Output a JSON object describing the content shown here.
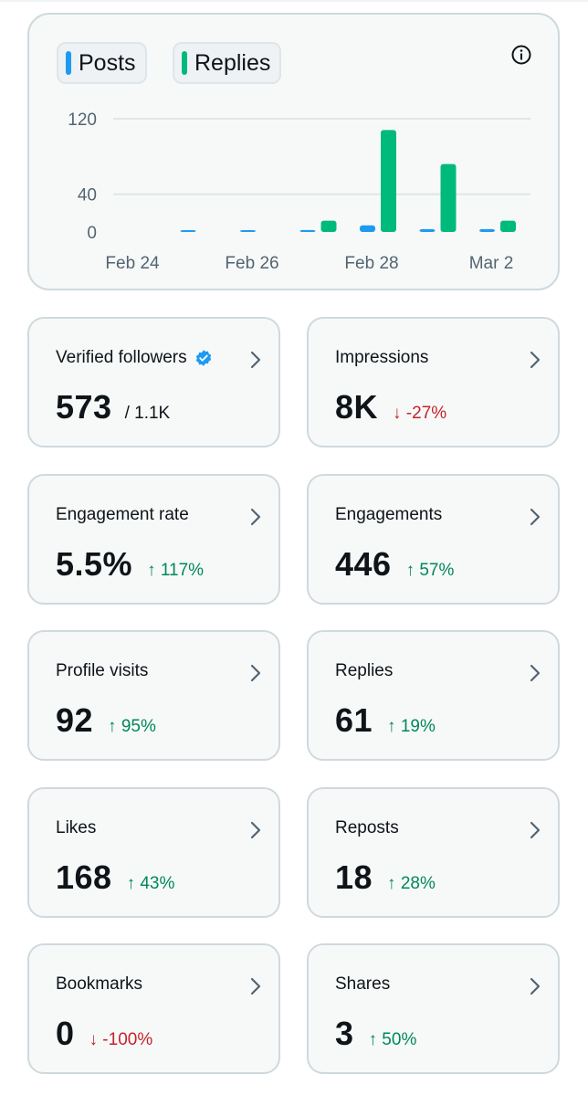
{
  "chart_data": {
    "type": "bar",
    "categories": [
      "Feb 24",
      "Feb 25",
      "Feb 26",
      "Feb 27",
      "Feb 28",
      "Mar 1",
      "Mar 2"
    ],
    "x_tick_labels": [
      "Feb 24",
      "Feb 26",
      "Feb 28",
      "Mar 2"
    ],
    "y_tick_labels": [
      "120",
      "40",
      "0"
    ],
    "ylim": [
      0,
      120
    ],
    "series": [
      {
        "name": "Posts",
        "color": "#1d9bf0",
        "values": [
          0,
          1,
          1,
          2,
          7,
          3,
          3
        ]
      },
      {
        "name": "Replies",
        "color": "#00ba7c",
        "values": [
          0,
          0,
          0,
          12,
          108,
          72,
          12
        ]
      }
    ],
    "grid": true,
    "legend": "top-left"
  },
  "chart": {
    "legend_posts": "Posts",
    "legend_replies": "Replies",
    "info_icon": "info-circle-icon"
  },
  "metrics": [
    {
      "title": "Verified followers",
      "value": "573",
      "secondary": "/ 1.1K",
      "verified_badge": true
    },
    {
      "title": "Impressions",
      "value": "8K",
      "change": "↓ -27%",
      "direction": "down"
    },
    {
      "title": "Engagement rate",
      "value": "5.5%",
      "change": "↑ 117%",
      "direction": "up"
    },
    {
      "title": "Engagements",
      "value": "446",
      "change": "↑ 57%",
      "direction": "up"
    },
    {
      "title": "Profile visits",
      "value": "92",
      "change": "↑ 95%",
      "direction": "up"
    },
    {
      "title": "Replies",
      "value": "61",
      "change": "↑ 19%",
      "direction": "up"
    },
    {
      "title": "Likes",
      "value": "168",
      "change": "↑ 43%",
      "direction": "up"
    },
    {
      "title": "Reposts",
      "value": "18",
      "change": "↑ 28%",
      "direction": "up"
    },
    {
      "title": "Bookmarks",
      "value": "0",
      "change": "↓ -100%",
      "direction": "down"
    },
    {
      "title": "Shares",
      "value": "3",
      "change": "↑ 50%",
      "direction": "up"
    }
  ],
  "colors": {
    "up": "#00875a",
    "down": "#c4232b",
    "verified": "#1d9bf0",
    "card_border": "#cfd9de"
  }
}
